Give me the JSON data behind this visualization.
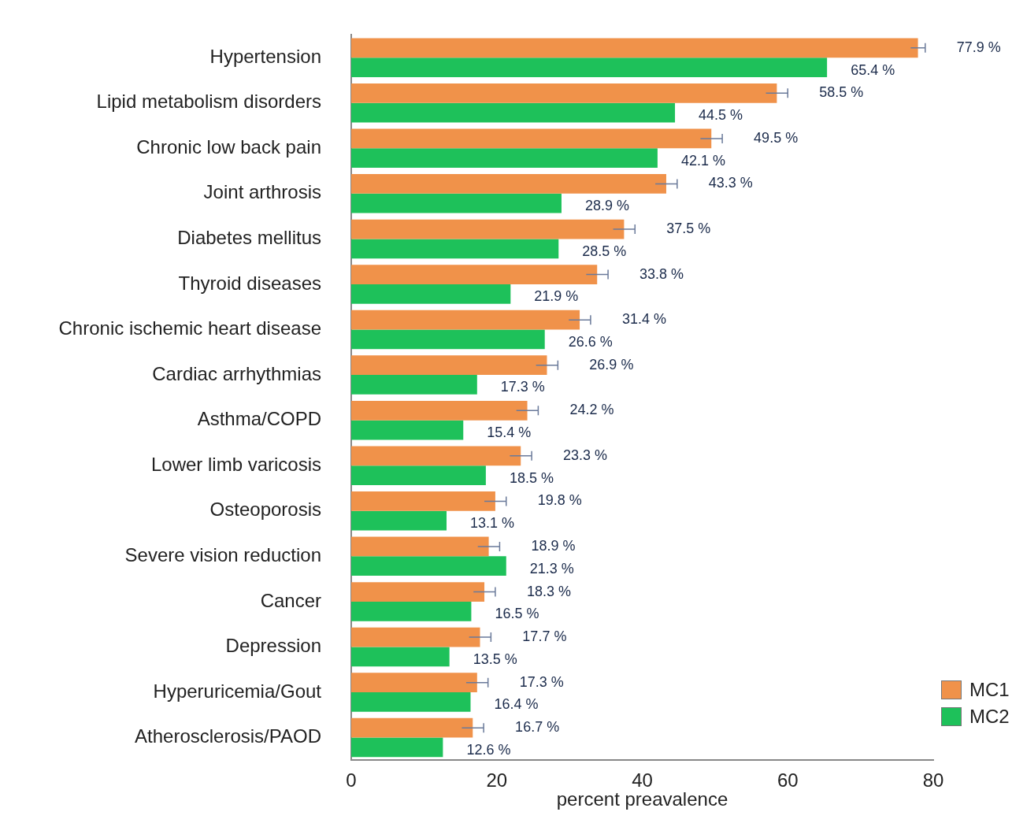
{
  "chart_data": {
    "type": "bar",
    "orientation": "horizontal",
    "xlabel": "percent preavalence",
    "categories": [
      "Hypertension",
      "Lipid metabolism disorders",
      "Chronic low back pain",
      "Joint arthrosis",
      "Diabetes mellitus",
      "Thyroid diseases",
      "Chronic ischemic heart disease",
      "Cardiac arrhythmias",
      "Asthma/COPD",
      "Lower limb varicosis",
      "Osteoporosis",
      "Severe vision reduction",
      "Cancer",
      "Depression",
      "Hyperuricemia/Gout",
      "Atherosclerosis/PAOD"
    ],
    "series": [
      {
        "name": "MC1",
        "color": "#f0924a",
        "values": [
          77.9,
          58.5,
          49.5,
          43.3,
          37.5,
          33.8,
          31.4,
          26.9,
          24.2,
          23.3,
          19.8,
          18.9,
          18.3,
          17.7,
          17.3,
          16.7
        ],
        "errors": [
          1,
          1.5,
          1.5,
          1.5,
          1.5,
          1.5,
          1.5,
          1.5,
          1.5,
          1.5,
          1.5,
          1.5,
          1.5,
          1.5,
          1.5,
          1.5
        ],
        "value_labels": [
          "77.9 %",
          "58.5 %",
          "49.5 %",
          "43.3 %",
          "37.5 %",
          "33.8 %",
          "31.4 %",
          "26.9 %",
          "24.2 %",
          "23.3 %",
          "19.8 %",
          "18.9 %",
          "18.3 %",
          "17.7 %",
          "17.3 %",
          "16.7 %"
        ]
      },
      {
        "name": "MC2",
        "color": "#1ec15a",
        "values": [
          65.4,
          44.5,
          42.1,
          28.9,
          28.5,
          21.9,
          26.6,
          17.3,
          15.4,
          18.5,
          13.1,
          21.3,
          16.5,
          13.5,
          16.4,
          12.6
        ],
        "value_labels": [
          "65.4 %",
          "44.5 %",
          "42.1 %",
          "28.9 %",
          "28.5 %",
          "21.9 %",
          "26.6 %",
          "17.3 %",
          "15.4 %",
          "18.5 %",
          "13.1 %",
          "21.3 %",
          "16.5 %",
          "13.5 %",
          "16.4 %",
          "12.6 %"
        ]
      }
    ],
    "xlim": [
      0,
      80
    ],
    "xticks": [
      0,
      20,
      40,
      60,
      80
    ],
    "grid": false,
    "legend": "bottom right"
  }
}
